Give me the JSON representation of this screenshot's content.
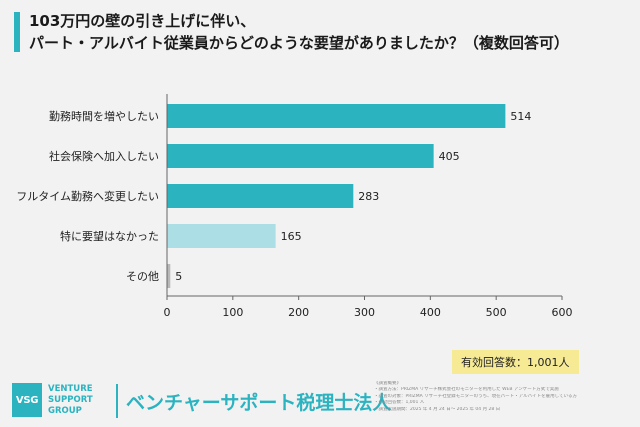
{
  "title": {
    "line1": "103万円の壁の引き上げに伴い、",
    "line2": "パート・アルバイト従業員からどのような要望がありましたか？（複数回答可）"
  },
  "response_count": "有効回答数：1,001人",
  "footer": {
    "logo_mark": "VSG",
    "logo_lines": [
      "VENTURE",
      "SUPPORT",
      "GROUP"
    ],
    "firm_name": "ベンチャーサポート税理士法人",
    "notes": [
      "《調査概要》",
      "・調査方法：PRIZMA リサーチ株式会社のモニターを利用した WEB アンケート方式で実施",
      "・調査の対象：PRIZMA リサーチ社登録モニターのうち、現在パート・アルバイトを雇用している方",
      "・有効回答数：1,001 人",
      "・調査実施期間：2025 年 4 月 24 日〜 2025 年 04 月 28 日"
    ]
  },
  "colors": {
    "accent": "#2bb3c0",
    "light_bar": "#acdfe5",
    "other_bar": "#b8b8b8",
    "highlight": "#f6ea95"
  },
  "chart_data": {
    "type": "bar",
    "orientation": "horizontal",
    "categories": [
      "勤務時間を増やしたい",
      "社会保険へ加入したい",
      "フルタイム勤務へ変更したい",
      "特に要望はなかった",
      "その他"
    ],
    "values": [
      514,
      405,
      283,
      165,
      5
    ],
    "value_labels": [
      "514",
      "405",
      "283",
      "165",
      "5"
    ],
    "bar_colors": [
      "#2bb3c0",
      "#2bb3c0",
      "#2bb3c0",
      "#acdfe5",
      "#b8b8b8"
    ],
    "xlim": [
      0,
      600
    ],
    "xticks": [
      0,
      100,
      200,
      300,
      400,
      500,
      600
    ],
    "xtick_labels": [
      "0",
      "100",
      "200",
      "300",
      "400",
      "500",
      "600"
    ],
    "grid": false
  }
}
